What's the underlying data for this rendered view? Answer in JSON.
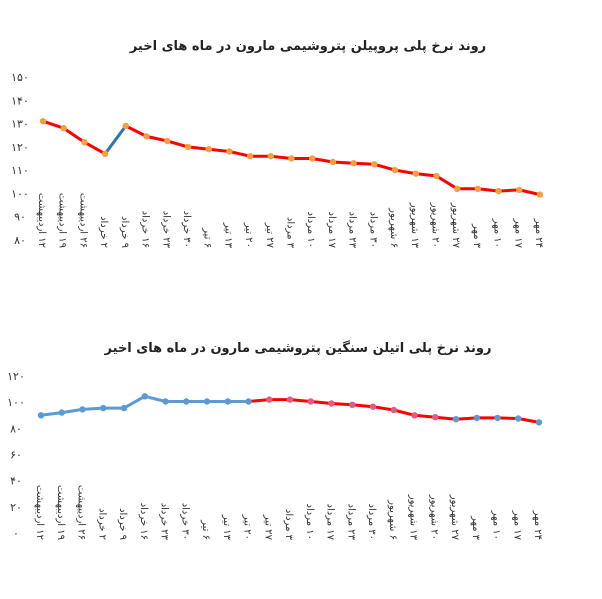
{
  "chart_data": [
    {
      "type": "line",
      "title": "روند نرخ پلی پروپیلن پتروشیمی مارون در ماه های اخیر",
      "ytick_labels": [
        "۸۰",
        "۹۰",
        "۱۰۰",
        "۱۱۰",
        "۱۲۰",
        "۱۳۰",
        "۱۴۰",
        "۱۵۰"
      ],
      "ylim": [
        80,
        150
      ],
      "grid": false,
      "legend": "none",
      "categories": [
        "۱۲ اردیبهشت",
        "۱۹ اردیبهشت",
        "۲۶ اردیبهشت",
        "۲ خرداد",
        "۹ خرداد",
        "۱۶ خرداد",
        "۲۳ خرداد",
        "۳۰ خرداد",
        "۶ تیر",
        "۱۳ تیر",
        "۲۰ تیر",
        "۲۷ تیر",
        "۳ مرداد",
        "۱۰ مرداد",
        "۱۷ مرداد",
        "۲۳ مرداد",
        "۳۰ مرداد",
        "۶ شهریور",
        "۱۳ شهریور",
        "۲۰ شهریور",
        "۲۷ شهریور",
        "۳ مهر",
        "۱۰ مهر",
        "۱۷ مهر",
        "۲۴ مهر"
      ],
      "values": [
        131,
        128,
        122,
        117,
        129,
        124.5,
        122.5,
        120,
        119,
        118,
        116,
        116,
        115,
        115,
        113.5,
        113,
        112.5,
        110,
        108.5,
        107.5,
        102,
        102,
        101,
        101.5,
        99.5
      ],
      "segments": [
        {
          "from": 0,
          "to": 3,
          "color": "#ff0000"
        },
        {
          "from": 3,
          "to": 4,
          "color": "#2e75b6"
        },
        {
          "from": 4,
          "to": 24,
          "color": "#ff0000"
        }
      ],
      "marker_color": "#f4a040"
    },
    {
      "type": "line",
      "title": "روند نرخ پلی اتیلن سنگین پتروشیمی مارون در ماه های اخیر",
      "ytick_labels": [
        "۰",
        "۲۰",
        "۴۰",
        "۶۰",
        "۸۰",
        "۱۰۰",
        "۱۲۰"
      ],
      "ylim": [
        0,
        120
      ],
      "grid": false,
      "legend": "none",
      "categories": [
        "۱۲ اردیبهشت",
        "۱۹ اردیبهشت",
        "۲۶ اردیبهشت",
        "۲ خرداد",
        "۹ خرداد",
        "۱۶ خرداد",
        "۲۳ خرداد",
        "۳۰ خرداد",
        "۶ تیر",
        "۱۳ تیر",
        "۲۰ تیر",
        "۲۷ تیر",
        "۳ مرداد",
        "۱۰ مرداد",
        "۱۷ مرداد",
        "۲۳ مرداد",
        "۳۰ مرداد",
        "۶ شهریور",
        "۱۳ شهریور",
        "۲۰ شهریور",
        "۲۷ شهریور",
        "۳ مهر",
        "۱۰ مهر",
        "۱۷ مهر",
        "۲۴ مهر"
      ],
      "values": [
        90,
        92,
        94.5,
        95.5,
        95.5,
        104.5,
        100.5,
        100.5,
        100.5,
        100.5,
        100.5,
        102,
        102,
        100.5,
        99,
        98,
        96.5,
        94,
        90,
        88.5,
        87,
        88,
        88,
        87.5,
        84.5
      ],
      "segments": [
        {
          "from": 0,
          "to": 10,
          "color": "#5b9bd5"
        },
        {
          "from": 10,
          "to": 20,
          "color": "#ff0000"
        },
        {
          "from": 20,
          "to": 24,
          "color": "#ff0000"
        }
      ],
      "marker_colors": {
        "default": "#5b9bd5",
        "alt": "#e05a8a",
        "alt_from": 11,
        "alt_to": 19
      }
    }
  ]
}
